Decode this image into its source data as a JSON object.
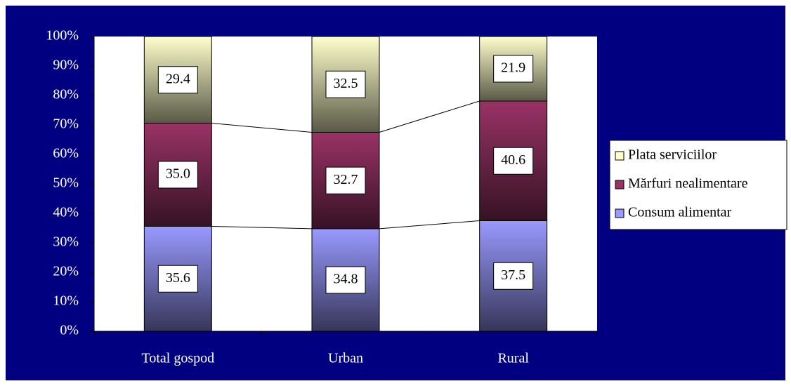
{
  "chart_data": {
    "type": "stacked_bar_100",
    "categories": [
      "Total gospod",
      "Urban",
      "Rural"
    ],
    "series": [
      {
        "name": "Consum alimentar",
        "color": "#9999ff",
        "values": [
          35.6,
          34.8,
          37.5
        ],
        "value_labels": [
          "35.6",
          "34.8",
          "37.5"
        ]
      },
      {
        "name": "Mărfuri nealimentare",
        "color": "#993366",
        "values": [
          35.0,
          32.7,
          40.6
        ],
        "value_labels": [
          "35.0",
          "32.7",
          "40.6"
        ]
      },
      {
        "name": "Plata serviciilor",
        "color": "#ffffcc",
        "values": [
          29.4,
          32.5,
          21.9
        ],
        "value_labels": [
          "29.4",
          "32.5",
          "21.9"
        ]
      }
    ],
    "ylim": [
      0,
      100
    ],
    "yticks": [
      {
        "value": 0,
        "label": "0%"
      },
      {
        "value": 10,
        "label": "10%"
      },
      {
        "value": 20,
        "label": "20%"
      },
      {
        "value": 30,
        "label": "30%"
      },
      {
        "value": 40,
        "label": "40%"
      },
      {
        "value": 50,
        "label": "50%"
      },
      {
        "value": 60,
        "label": "60%"
      },
      {
        "value": 70,
        "label": "70%"
      },
      {
        "value": 80,
        "label": "80%"
      },
      {
        "value": 90,
        "label": "90%"
      },
      {
        "value": 100,
        "label": "100%"
      }
    ],
    "series_lines": true,
    "legend": "right"
  }
}
